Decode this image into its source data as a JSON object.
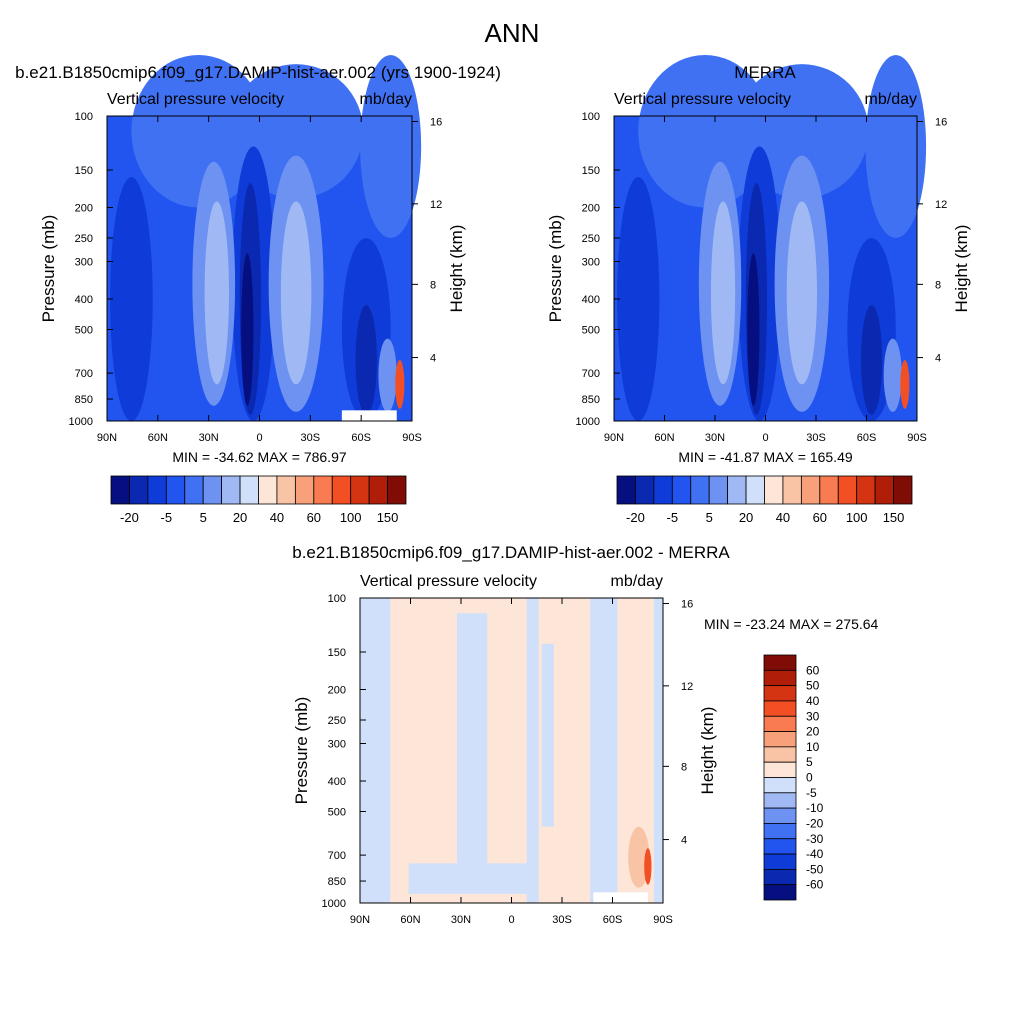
{
  "page": {
    "title": "ANN"
  },
  "chart_data": [
    {
      "type": "heatmap",
      "title": "b.e21.B1850cmip6.f09_g17.DAMIP-hist-aer.002 (yrs 1900-1924)",
      "left_label": "Vertical pressure velocity",
      "right_label": "mb/day",
      "ylabel": "Pressure (mb)",
      "y2label": "Height (km)",
      "x_ticks": [
        "90N",
        "60N",
        "30N",
        "0",
        "30S",
        "60S",
        "90S"
      ],
      "y_ticks": [
        "100",
        "150",
        "200",
        "250",
        "300",
        "400",
        "500",
        "700",
        "850",
        "1000"
      ],
      "y2_ticks": [
        "16",
        "12",
        "8",
        "4"
      ],
      "ylim": [
        1000,
        100
      ],
      "stats": "MIN = -34.62  MAX = 786.97",
      "colorbar": {
        "orientation": "horizontal",
        "labels": [
          "-20",
          "-5",
          "5",
          "20",
          "40",
          "60",
          "100",
          "150"
        ],
        "colors": [
          "#050f80",
          "#0a28b0",
          "#0f3cd9",
          "#2255f0",
          "#3f71f2",
          "#6d92f2",
          "#a0b9f5",
          "#d0e0fb",
          "#fde6d8",
          "#f9c3a6",
          "#f8a07a",
          "#f87b51",
          "#f24f24",
          "#d53412",
          "#b01e0a",
          "#800d05"
        ]
      }
    },
    {
      "type": "heatmap",
      "title": "MERRA",
      "left_label": "Vertical pressure velocity",
      "right_label": "mb/day",
      "ylabel": "Pressure (mb)",
      "y2label": "Height (km)",
      "x_ticks": [
        "90N",
        "60N",
        "30N",
        "0",
        "30S",
        "60S",
        "90S"
      ],
      "y_ticks": [
        "100",
        "150",
        "200",
        "250",
        "300",
        "400",
        "500",
        "700",
        "850",
        "1000"
      ],
      "y2_ticks": [
        "16",
        "12",
        "8",
        "4"
      ],
      "ylim": [
        1000,
        100
      ],
      "stats": "MIN = -41.87  MAX = 165.49",
      "colorbar": {
        "orientation": "horizontal",
        "labels": [
          "-20",
          "-5",
          "5",
          "20",
          "40",
          "60",
          "100",
          "150"
        ],
        "colors": [
          "#050f80",
          "#0a28b0",
          "#0f3cd9",
          "#2255f0",
          "#3f71f2",
          "#6d92f2",
          "#a0b9f5",
          "#d0e0fb",
          "#fde6d8",
          "#f9c3a6",
          "#f8a07a",
          "#f87b51",
          "#f24f24",
          "#d53412",
          "#b01e0a",
          "#800d05"
        ]
      }
    },
    {
      "type": "heatmap",
      "title": "b.e21.B1850cmip6.f09_g17.DAMIP-hist-aer.002 - MERRA",
      "left_label": "Vertical pressure velocity",
      "right_label": "mb/day",
      "ylabel": "Pressure (mb)",
      "y2label": "Height (km)",
      "x_ticks": [
        "90N",
        "60N",
        "30N",
        "0",
        "30S",
        "60S",
        "90S"
      ],
      "y_ticks": [
        "100",
        "150",
        "200",
        "250",
        "300",
        "400",
        "500",
        "700",
        "850",
        "1000"
      ],
      "y2_ticks": [
        "16",
        "12",
        "8",
        "4"
      ],
      "ylim": [
        1000,
        100
      ],
      "stats": "MIN = -23.24  MAX = 275.64",
      "colorbar": {
        "orientation": "vertical",
        "labels": [
          "60",
          "50",
          "40",
          "30",
          "20",
          "10",
          "5",
          "0",
          "-5",
          "-10",
          "-20",
          "-30",
          "-40",
          "-50",
          "-60"
        ],
        "colors": [
          "#800d05",
          "#b01e0a",
          "#d53412",
          "#f24f24",
          "#f87b51",
          "#f8a07a",
          "#f9c3a6",
          "#fde6d8",
          "#d0e0fb",
          "#a0b9f5",
          "#6d92f2",
          "#3f71f2",
          "#2255f0",
          "#0f3cd9",
          "#0a28b0",
          "#050f80"
        ]
      }
    }
  ]
}
